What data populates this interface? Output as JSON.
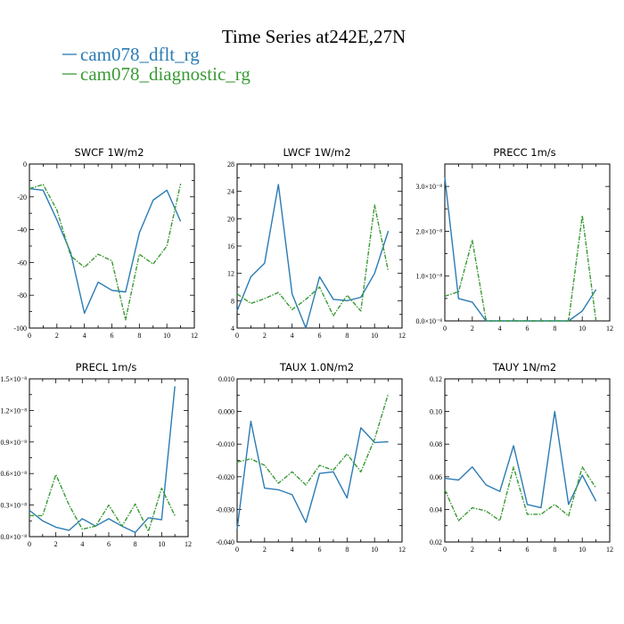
{
  "title": "Time Series at242E,27N",
  "legend": [
    {
      "label": "cam078_dflt_rg",
      "color": "#2b7bb4",
      "dash": "solid"
    },
    {
      "label": "cam078_diagnostic_rg",
      "color": "#3a9a35",
      "dash": "dashed"
    }
  ],
  "chart_data": [
    {
      "type": "line",
      "title": "SWCF   1W/m2",
      "xlim": [
        0,
        12
      ],
      "ylim": [
        -100,
        0
      ],
      "xticks": [
        "0",
        "2",
        "4",
        "6",
        "8",
        "10",
        "12"
      ],
      "xtick_values": [
        0,
        2,
        4,
        6,
        8,
        10,
        12
      ],
      "yticks": [
        "0",
        "-20",
        "-40",
        "-60",
        "-80",
        "-100"
      ],
      "ytick_values": [
        0,
        -20,
        -40,
        -60,
        -80,
        -100
      ],
      "series": [
        {
          "name": "cam078_dflt_rg",
          "x": [
            0,
            1,
            2,
            3,
            4,
            5,
            6,
            7,
            8,
            9,
            10,
            11
          ],
          "y": [
            -15,
            -16,
            -34,
            -54,
            -91,
            -72,
            -77,
            -78,
            -42,
            -22,
            -16,
            -35
          ]
        },
        {
          "name": "cam078_diagnostic_rg",
          "x": [
            0,
            1,
            2,
            3,
            4,
            5,
            6,
            7,
            8,
            9,
            10,
            11
          ],
          "y": [
            -15,
            -12.5,
            -28,
            -56,
            -63,
            -55,
            -59,
            -95,
            -55,
            -61,
            -50,
            -12
          ]
        }
      ]
    },
    {
      "type": "line",
      "title": "LWCF   1W/m2",
      "xlim": [
        0,
        12
      ],
      "ylim": [
        4,
        28
      ],
      "xticks": [
        "0",
        "2",
        "4",
        "6",
        "8",
        "10",
        "12"
      ],
      "xtick_values": [
        0,
        2,
        4,
        6,
        8,
        10,
        12
      ],
      "yticks": [
        "4",
        "8",
        "12",
        "16",
        "20",
        "24",
        "28"
      ],
      "ytick_values": [
        4,
        8,
        12,
        16,
        20,
        24,
        28
      ],
      "series": [
        {
          "name": "cam078_dflt_rg",
          "x": [
            0,
            1,
            2,
            3,
            4,
            5,
            6,
            7,
            8,
            9,
            10,
            11
          ],
          "y": [
            6.5,
            11.5,
            13.5,
            25,
            9,
            4,
            11.5,
            8.2,
            8,
            8.5,
            12,
            18.2
          ]
        },
        {
          "name": "cam078_diagnostic_rg",
          "x": [
            0,
            1,
            2,
            3,
            4,
            5,
            6,
            7,
            8,
            9,
            10,
            11
          ],
          "y": [
            9,
            7.6,
            8.3,
            9.2,
            6.7,
            8.2,
            10,
            5.8,
            8.8,
            6.5,
            22,
            12.3
          ]
        }
      ]
    },
    {
      "type": "line",
      "title": "PRECC   1m/s",
      "xlim": [
        0,
        12
      ],
      "ylim": [
        0,
        3.5e-08
      ],
      "xticks": [
        "0",
        "2",
        "4",
        "6",
        "8",
        "10",
        "12"
      ],
      "xtick_values": [
        0,
        2,
        4,
        6,
        8,
        10,
        12
      ],
      "yticks": [
        "0.0×10⁻⁸",
        "1.0×10⁻⁸",
        "2.0×10⁻⁸",
        "3.0×10⁻⁸"
      ],
      "ytick_values": [
        0,
        1e-08,
        2e-08,
        3e-08
      ],
      "series": [
        {
          "name": "cam078_dflt_rg",
          "x": [
            0,
            1,
            2,
            3,
            4,
            5,
            6,
            7,
            8,
            9,
            10,
            11
          ],
          "y": [
            3.2e-08,
            5e-09,
            4.2e-09,
            0,
            0,
            0,
            0,
            0,
            0,
            0,
            2.2e-09,
            7e-09
          ]
        },
        {
          "name": "cam078_diagnostic_rg",
          "x": [
            0,
            1,
            2,
            3,
            4,
            5,
            6,
            7,
            8,
            9,
            10,
            11
          ],
          "y": [
            5.5e-09,
            6.5e-09,
            1.8e-08,
            0,
            0,
            0,
            0,
            0,
            0,
            0,
            2.35e-08,
            0
          ]
        }
      ]
    },
    {
      "type": "line",
      "title": "PRECL   1m/s",
      "xlim": [
        0,
        12
      ],
      "ylim": [
        0,
        1.5e-08
      ],
      "xticks": [
        "0",
        "2",
        "4",
        "6",
        "8",
        "10",
        "12"
      ],
      "xtick_values": [
        0,
        2,
        4,
        6,
        8,
        10,
        12
      ],
      "yticks": [
        "0.0×10⁻⁸",
        "0.3×10⁻⁸",
        "0.6×10⁻⁸",
        "0.9×10⁻⁸",
        "1.2×10⁻⁸",
        "1.5×10⁻⁸"
      ],
      "ytick_values": [
        0,
        3e-09,
        6e-09,
        9e-09,
        1.2e-08,
        1.5e-08
      ],
      "series": [
        {
          "name": "cam078_dflt_rg",
          "x": [
            0,
            1,
            2,
            3,
            4,
            5,
            6,
            7,
            8,
            9,
            10,
            11
          ],
          "y": [
            2.5e-09,
            1.5e-09,
            9e-10,
            6e-10,
            1.7e-09,
            1e-09,
            1.7e-09,
            1e-09,
            4e-10,
            1.8e-09,
            1.6e-09,
            1.43e-08
          ]
        },
        {
          "name": "cam078_diagnostic_rg",
          "x": [
            0,
            1,
            2,
            3,
            4,
            5,
            6,
            7,
            8,
            9,
            10,
            11
          ],
          "y": [
            2e-09,
            2e-09,
            5.9e-09,
            3e-09,
            7e-10,
            1e-09,
            3e-09,
            1e-09,
            3.1e-09,
            5e-10,
            4.6e-09,
            2e-09
          ]
        }
      ]
    },
    {
      "type": "line",
      "title": "TAUX   1.0N/m2",
      "xlim": [
        0,
        12
      ],
      "ylim": [
        -0.04,
        0.01
      ],
      "xticks": [
        "0",
        "2",
        "4",
        "6",
        "8",
        "10",
        "12"
      ],
      "xtick_values": [
        0,
        2,
        4,
        6,
        8,
        10,
        12
      ],
      "yticks": [
        "0.010",
        "0.000",
        "-0.010",
        "-0.020",
        "-0.030",
        "-0.040"
      ],
      "ytick_values": [
        0.01,
        0,
        -0.01,
        -0.02,
        -0.03,
        -0.04
      ],
      "series": [
        {
          "name": "cam078_dflt_rg",
          "x": [
            0,
            1,
            2,
            3,
            4,
            5,
            6,
            7,
            8,
            9,
            10,
            11
          ],
          "y": [
            -0.036,
            -0.003,
            -0.0235,
            -0.024,
            -0.0255,
            -0.034,
            -0.019,
            -0.0185,
            -0.0265,
            -0.005,
            -0.0095,
            -0.0093
          ]
        },
        {
          "name": "cam078_diagnostic_rg",
          "x": [
            0,
            1,
            2,
            3,
            4,
            5,
            6,
            7,
            8,
            9,
            10,
            11
          ],
          "y": [
            -0.0155,
            -0.0145,
            -0.0165,
            -0.022,
            -0.0185,
            -0.0225,
            -0.0165,
            -0.018,
            -0.013,
            -0.0185,
            -0.0085,
            0.0055
          ]
        }
      ]
    },
    {
      "type": "line",
      "title": "TAUY   1N/m2",
      "xlim": [
        0,
        12
      ],
      "ylim": [
        0.02,
        0.12
      ],
      "xticks": [
        "0",
        "2",
        "4",
        "6",
        "8",
        "10",
        "12"
      ],
      "xtick_values": [
        0,
        2,
        4,
        6,
        8,
        10,
        12
      ],
      "yticks": [
        "0.12",
        "0.10",
        "0.08",
        "0.06",
        "0.04",
        "0.02"
      ],
      "ytick_values": [
        0.12,
        0.1,
        0.08,
        0.06,
        0.04,
        0.02
      ],
      "series": [
        {
          "name": "cam078_dflt_rg",
          "x": [
            0,
            1,
            2,
            3,
            4,
            5,
            6,
            7,
            8,
            9,
            10,
            11
          ],
          "y": [
            0.059,
            0.058,
            0.066,
            0.055,
            0.051,
            0.079,
            0.043,
            0.041,
            0.1,
            0.043,
            0.061,
            0.045
          ]
        },
        {
          "name": "cam078_diagnostic_rg",
          "x": [
            0,
            1,
            2,
            3,
            4,
            5,
            6,
            7,
            8,
            9,
            10,
            11
          ],
          "y": [
            0.052,
            0.033,
            0.041,
            0.039,
            0.033,
            0.066,
            0.037,
            0.037,
            0.043,
            0.036,
            0.066,
            0.053
          ]
        }
      ]
    }
  ]
}
